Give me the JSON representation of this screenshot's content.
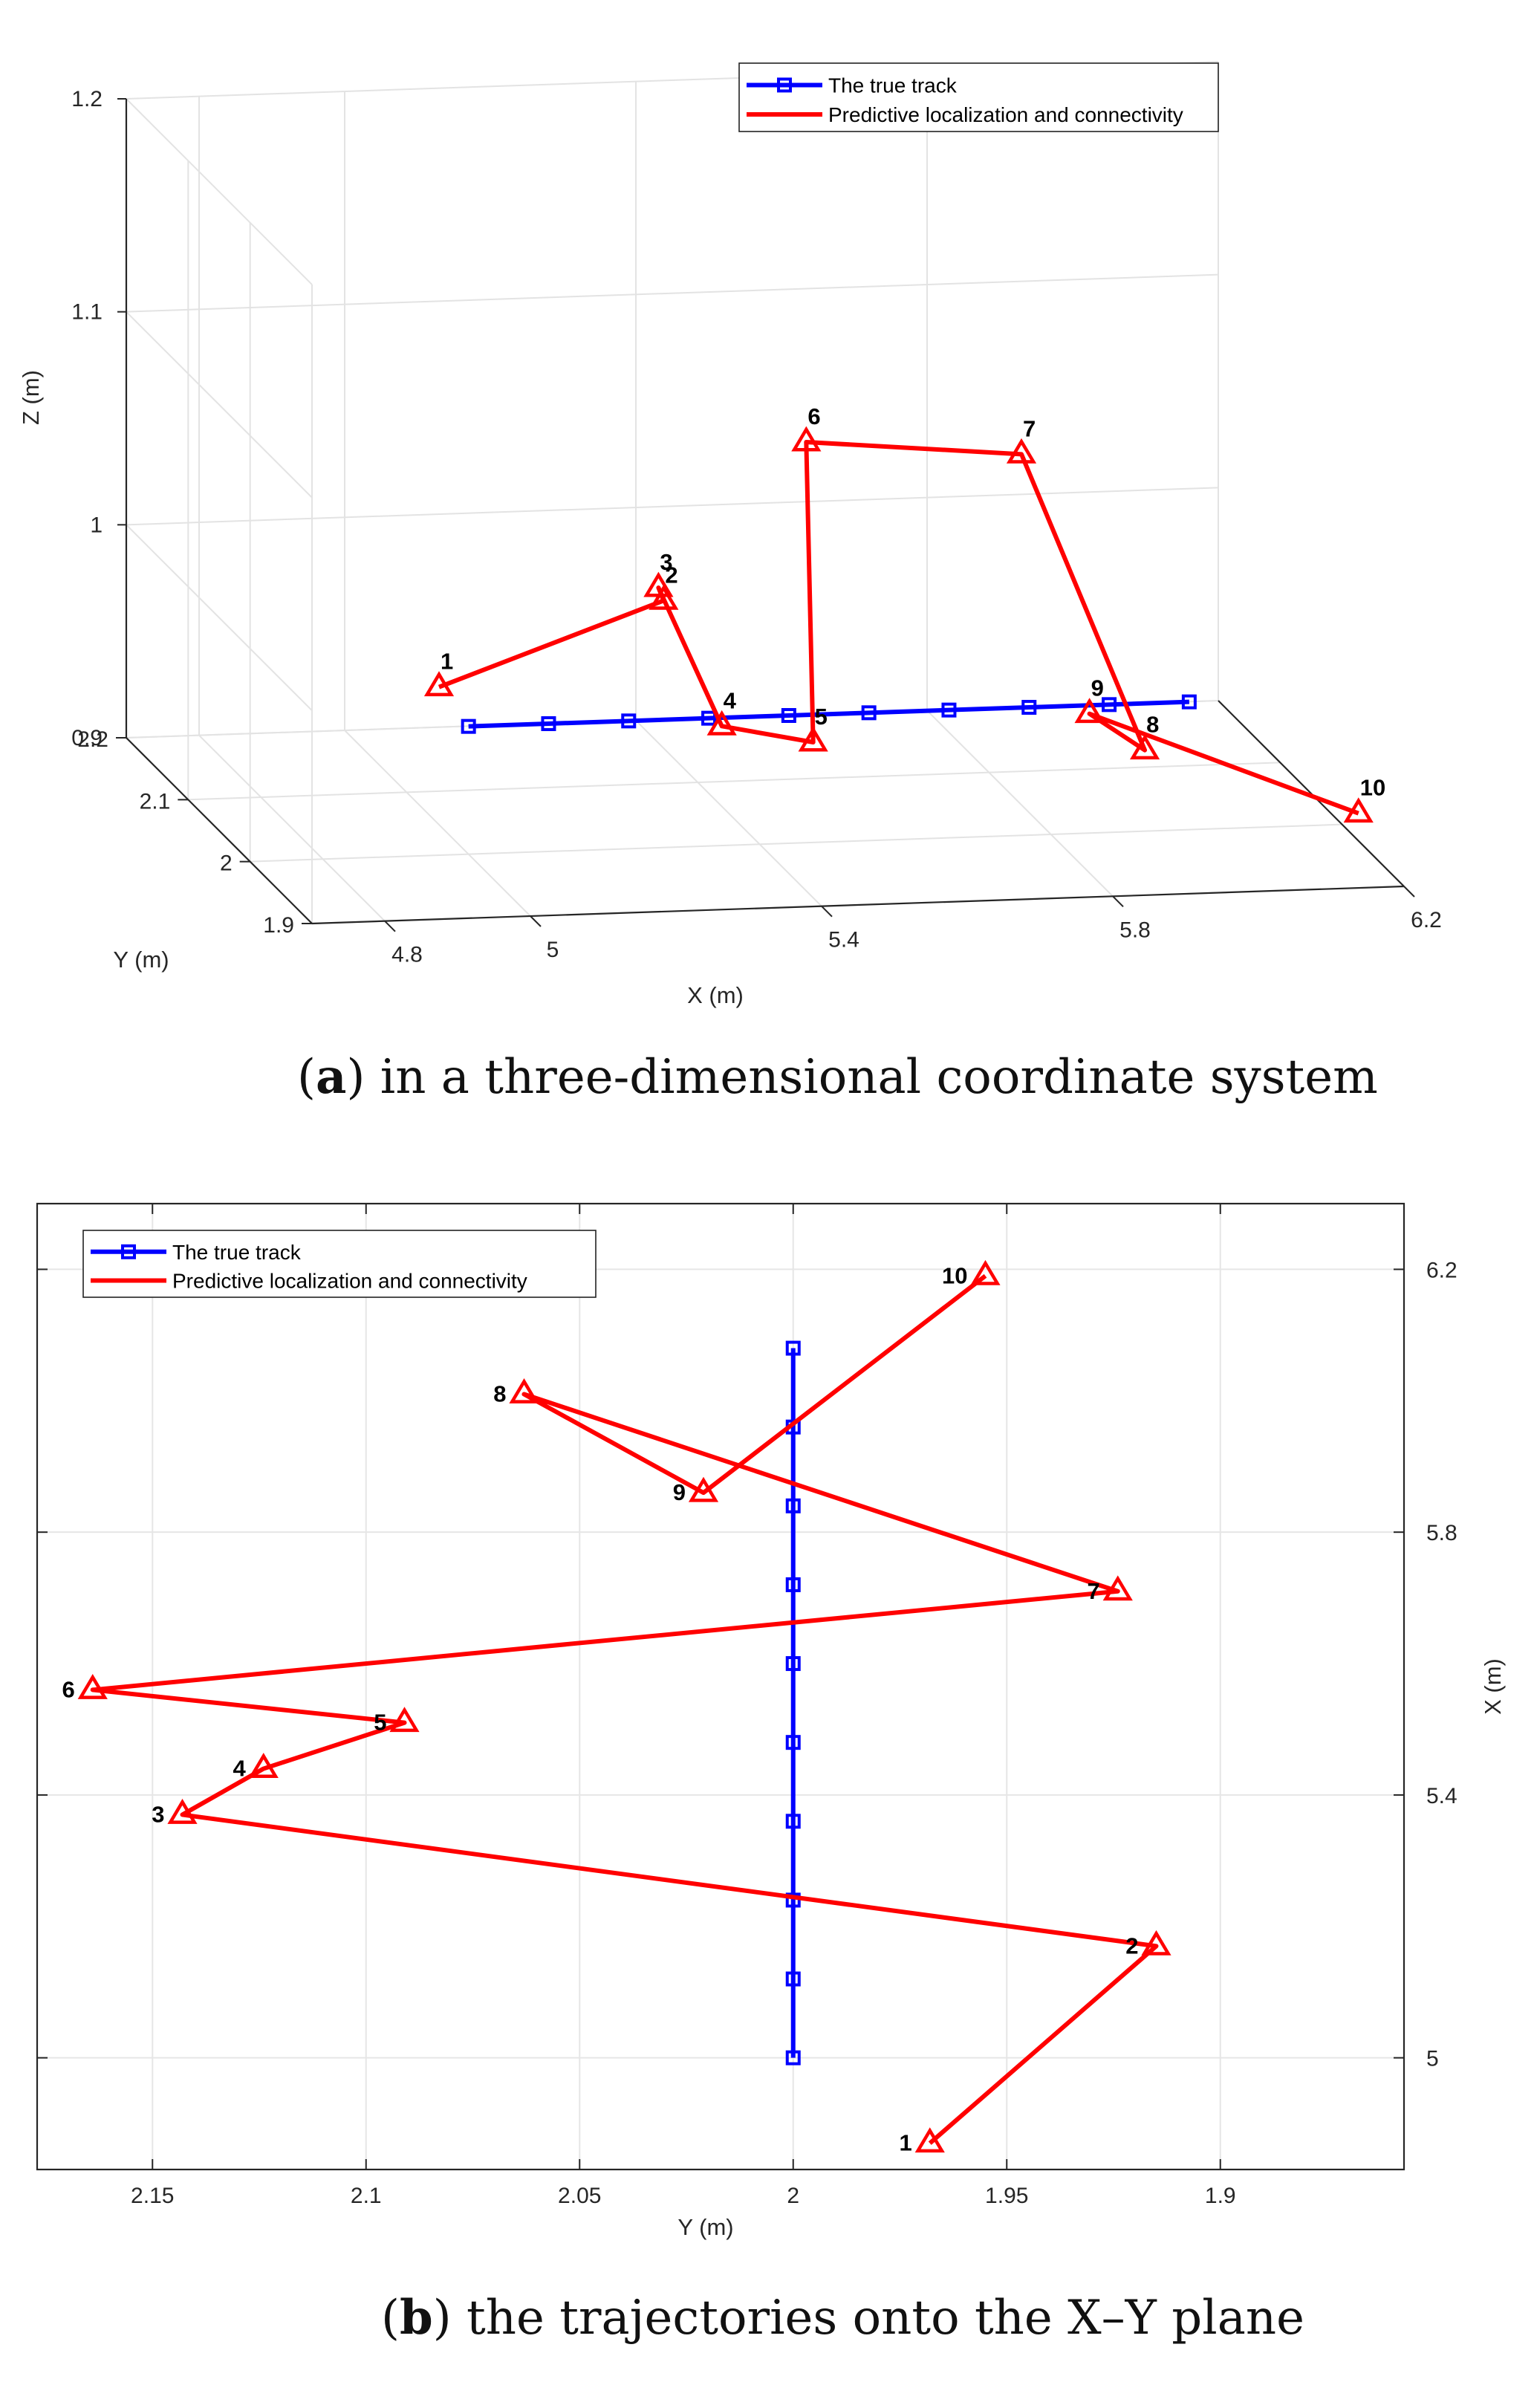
{
  "chart_data": [
    {
      "id": "a",
      "type": "line",
      "projection": "3d",
      "caption_letter": "a",
      "caption_text": ") in a three-dimensional coordinate system",
      "xlabel": "X (m)",
      "ylabel": "Y (m)",
      "zlabel": "Z (m)",
      "xlim": [
        4.7,
        6.2
      ],
      "ylim": [
        1.9,
        2.2
      ],
      "zlim": [
        0.9,
        1.2
      ],
      "xticks": [
        "4.8",
        "5",
        "5.4",
        "5.8",
        "6.2"
      ],
      "yticks": [
        "1.9",
        "2",
        "2.1",
        "2.2"
      ],
      "zticks": [
        "0.9",
        "1",
        "1.1",
        "1.2"
      ],
      "legend": {
        "position": "top-right",
        "entries": [
          "The true track",
          "Predictive localization and connectivity"
        ]
      },
      "series": [
        {
          "name": "The true track",
          "color": "#0000ff",
          "marker": "square",
          "x": [
            5.0,
            5.11,
            5.22,
            5.33,
            5.44,
            5.55,
            5.66,
            5.77,
            5.88,
            5.99
          ],
          "y": [
            2.0,
            2.0,
            2.0,
            2.0,
            2.0,
            2.0,
            2.0,
            2.0,
            2.0,
            2.0
          ],
          "z": [
            0.96,
            0.96,
            0.96,
            0.96,
            0.96,
            0.96,
            0.96,
            0.96,
            0.96,
            0.96
          ]
        },
        {
          "name": "Predictive localization and connectivity",
          "color": "#ff0000",
          "marker": "triangle",
          "labels": [
            "1",
            "2",
            "3",
            "4",
            "5",
            "6",
            "7",
            "8",
            "9",
            "10"
          ],
          "x": [
            4.9,
            5.2,
            5.38,
            5.45,
            5.55,
            5.6,
            5.7,
            5.98,
            5.87,
            6.18
          ],
          "y": [
            1.93,
            1.92,
            2.14,
            2.12,
            2.09,
            2.16,
            1.93,
            2.06,
            2.02,
            1.95
          ],
          "z": [
            1.0,
            1.04,
            0.98,
            0.92,
            0.92,
            1.04,
            1.1,
            0.92,
            0.95,
            0.92
          ]
        }
      ]
    },
    {
      "id": "b",
      "type": "line",
      "caption_letter": "b",
      "caption_text": ") the trajectories onto the X–Y plane",
      "xlabel": "Y (m)",
      "ylabel": "X (m)",
      "xlim": [
        2.177,
        1.857
      ],
      "ylim": [
        4.83,
        6.3
      ],
      "xticks": [
        "2.15",
        "2.1",
        "2.05",
        "2",
        "1.95",
        "1.9"
      ],
      "yticks": [
        "5",
        "5.4",
        "5.8",
        "6.2"
      ],
      "grid": true,
      "legend": {
        "position": "top-left",
        "entries": [
          "The true track",
          "Predictive localization and connectivity"
        ]
      },
      "series": [
        {
          "name": "The true track",
          "color": "#0000ff",
          "marker": "square",
          "y": [
            2.0,
            2.0,
            2.0,
            2.0,
            2.0,
            2.0,
            2.0,
            2.0,
            2.0,
            2.0
          ],
          "x": [
            5.0,
            5.12,
            5.24,
            5.36,
            5.48,
            5.6,
            5.72,
            5.84,
            5.96,
            6.08
          ]
        },
        {
          "name": "Predictive localization and connectivity",
          "color": "#ff0000",
          "marker": "triangle",
          "labels": [
            "1",
            "2",
            "3",
            "4",
            "5",
            "6",
            "7",
            "8",
            "9",
            "10"
          ],
          "y": [
            1.968,
            1.915,
            2.143,
            2.124,
            2.091,
            2.164,
            1.924,
            2.063,
            2.021,
            1.955
          ],
          "x": [
            4.87,
            5.17,
            5.37,
            5.44,
            5.51,
            5.56,
            5.71,
            6.01,
            5.86,
            6.19
          ]
        }
      ]
    }
  ]
}
